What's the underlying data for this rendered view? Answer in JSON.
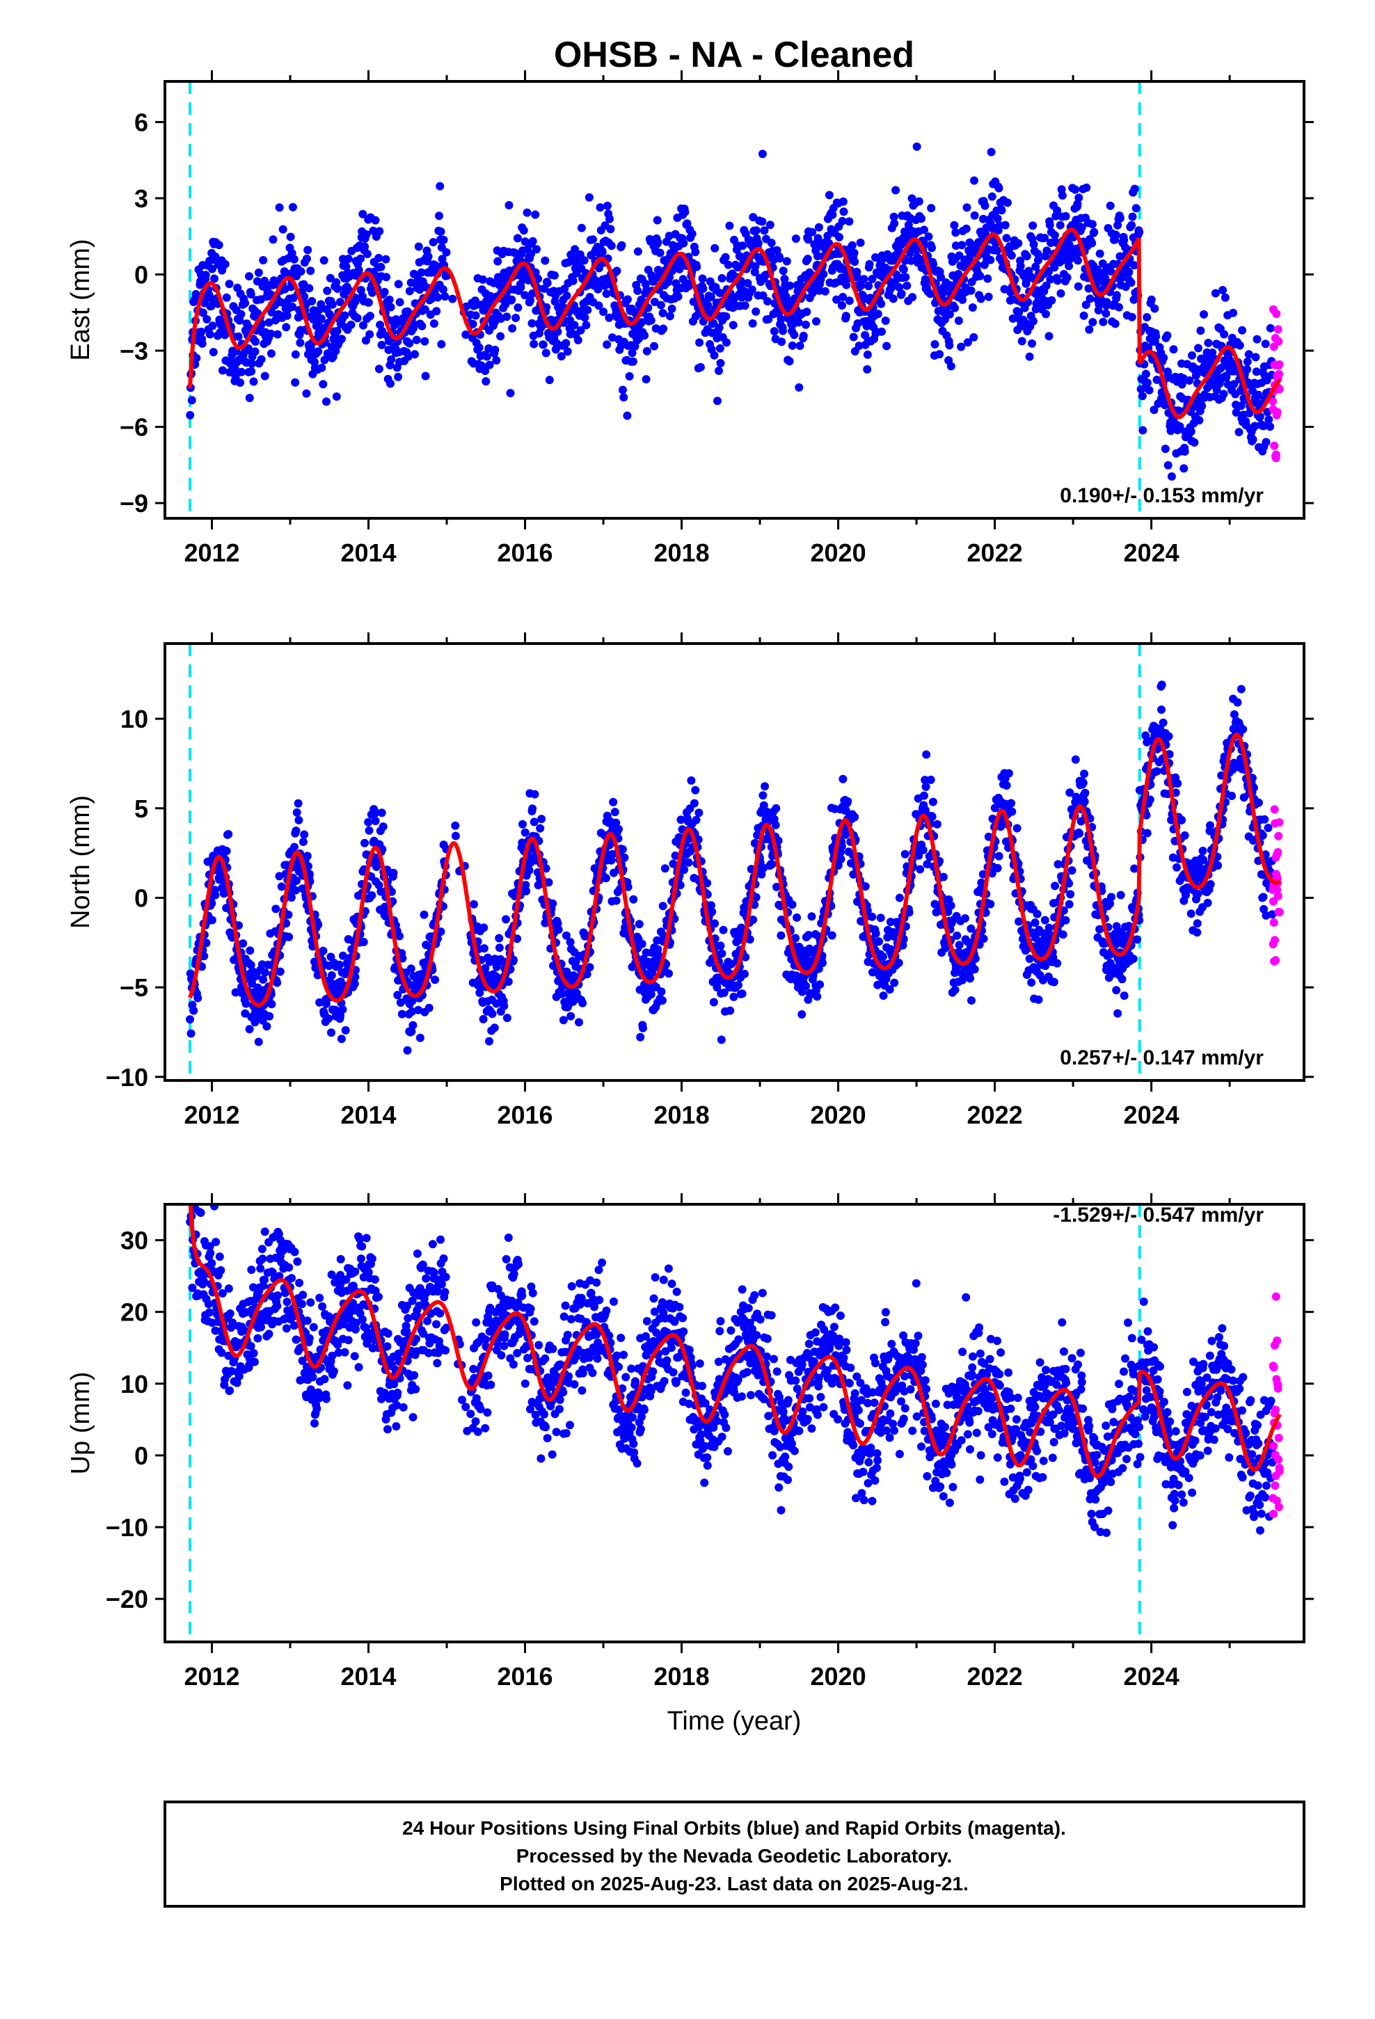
{
  "title": "OHSB  - NA - Cleaned",
  "xlabel": "Time (year)",
  "x_ticks": [
    2012,
    2014,
    2016,
    2018,
    2020,
    2022,
    2024
  ],
  "xlim": [
    2011.4,
    2025.95
  ],
  "colors": {
    "final_orbits": "#0000ff",
    "rapid_orbits": "#ff00ff",
    "model": "#ff0000",
    "event_lines": "#00e5ee"
  },
  "events": [
    2011.72,
    2023.85
  ],
  "footer": {
    "line1": "24 Hour Positions Using Final Orbits (blue) and Rapid Orbits (magenta).",
    "line2": "Processed by the Nevada Geodetic Laboratory.",
    "line3": "Plotted on 2025-Aug-23. Last data on 2025-Aug-21."
  },
  "chart_data": [
    {
      "type": "scatter",
      "component": "east",
      "ylabel": "East (mm)",
      "ylim": [
        -9.6,
        7.6
      ],
      "y_ticks": [
        -9,
        -6,
        -3,
        0,
        3,
        6
      ],
      "rate_text": "0.190+/- 0.153 mm/yr",
      "rate_mm_per_yr": 0.19,
      "model_params": {
        "amp_annual": 1.2,
        "phase_annual": 2.1,
        "amp_semi": 0.3,
        "noise": 1.1,
        "step": -5.0,
        "offset": -0.5,
        "initial_transient": -3.0
      },
      "series": [
        {
          "name": "Final Orbits",
          "color": "#0000ff",
          "x_range": [
            2011.72,
            2025.55
          ]
        },
        {
          "name": "Rapid Orbits",
          "color": "#ff00ff",
          "x_range": [
            2025.55,
            2025.64
          ]
        }
      ],
      "model_line": {
        "color": "#ff0000"
      }
    },
    {
      "type": "scatter",
      "component": "north",
      "ylabel": "North (mm)",
      "ylim": [
        -10.2,
        14.2
      ],
      "y_ticks": [
        -10,
        -5,
        0,
        5,
        10
      ],
      "rate_text": "0.257+/- 0.147 mm/yr",
      "rate_mm_per_yr": 0.257,
      "model_params": {
        "amp_annual": 4.2,
        "phase_annual": 1.0,
        "amp_semi": 0.6,
        "noise": 1.2,
        "step": 3.5,
        "offset": -1.0,
        "initial_transient": 0.0
      },
      "series": [
        {
          "name": "Final Orbits",
          "color": "#0000ff",
          "x_range": [
            2011.72,
            2025.55
          ]
        },
        {
          "name": "Rapid Orbits",
          "color": "#ff00ff",
          "x_range": [
            2025.55,
            2025.64
          ]
        }
      ],
      "model_line": {
        "color": "#ff0000"
      }
    },
    {
      "type": "scatter",
      "component": "up",
      "ylabel": "Up (mm)",
      "ylim": [
        -26,
        35
      ],
      "y_ticks": [
        -20,
        -10,
        0,
        10,
        20,
        30
      ],
      "rate_text": "-1.529+/- 0.547 mm/yr",
      "rate_mm_per_yr": -1.529,
      "model_params": {
        "amp_annual": 5.5,
        "phase_annual": 2.6,
        "amp_semi": 1.0,
        "noise": 4.0,
        "step": 4.0,
        "offset": 11.5,
        "initial_transient": 12.0
      },
      "series": [
        {
          "name": "Final Orbits",
          "color": "#0000ff",
          "x_range": [
            2011.72,
            2025.55
          ]
        },
        {
          "name": "Rapid Orbits",
          "color": "#ff00ff",
          "x_range": [
            2025.55,
            2025.64
          ]
        }
      ],
      "model_line": {
        "color": "#ff0000"
      }
    }
  ]
}
